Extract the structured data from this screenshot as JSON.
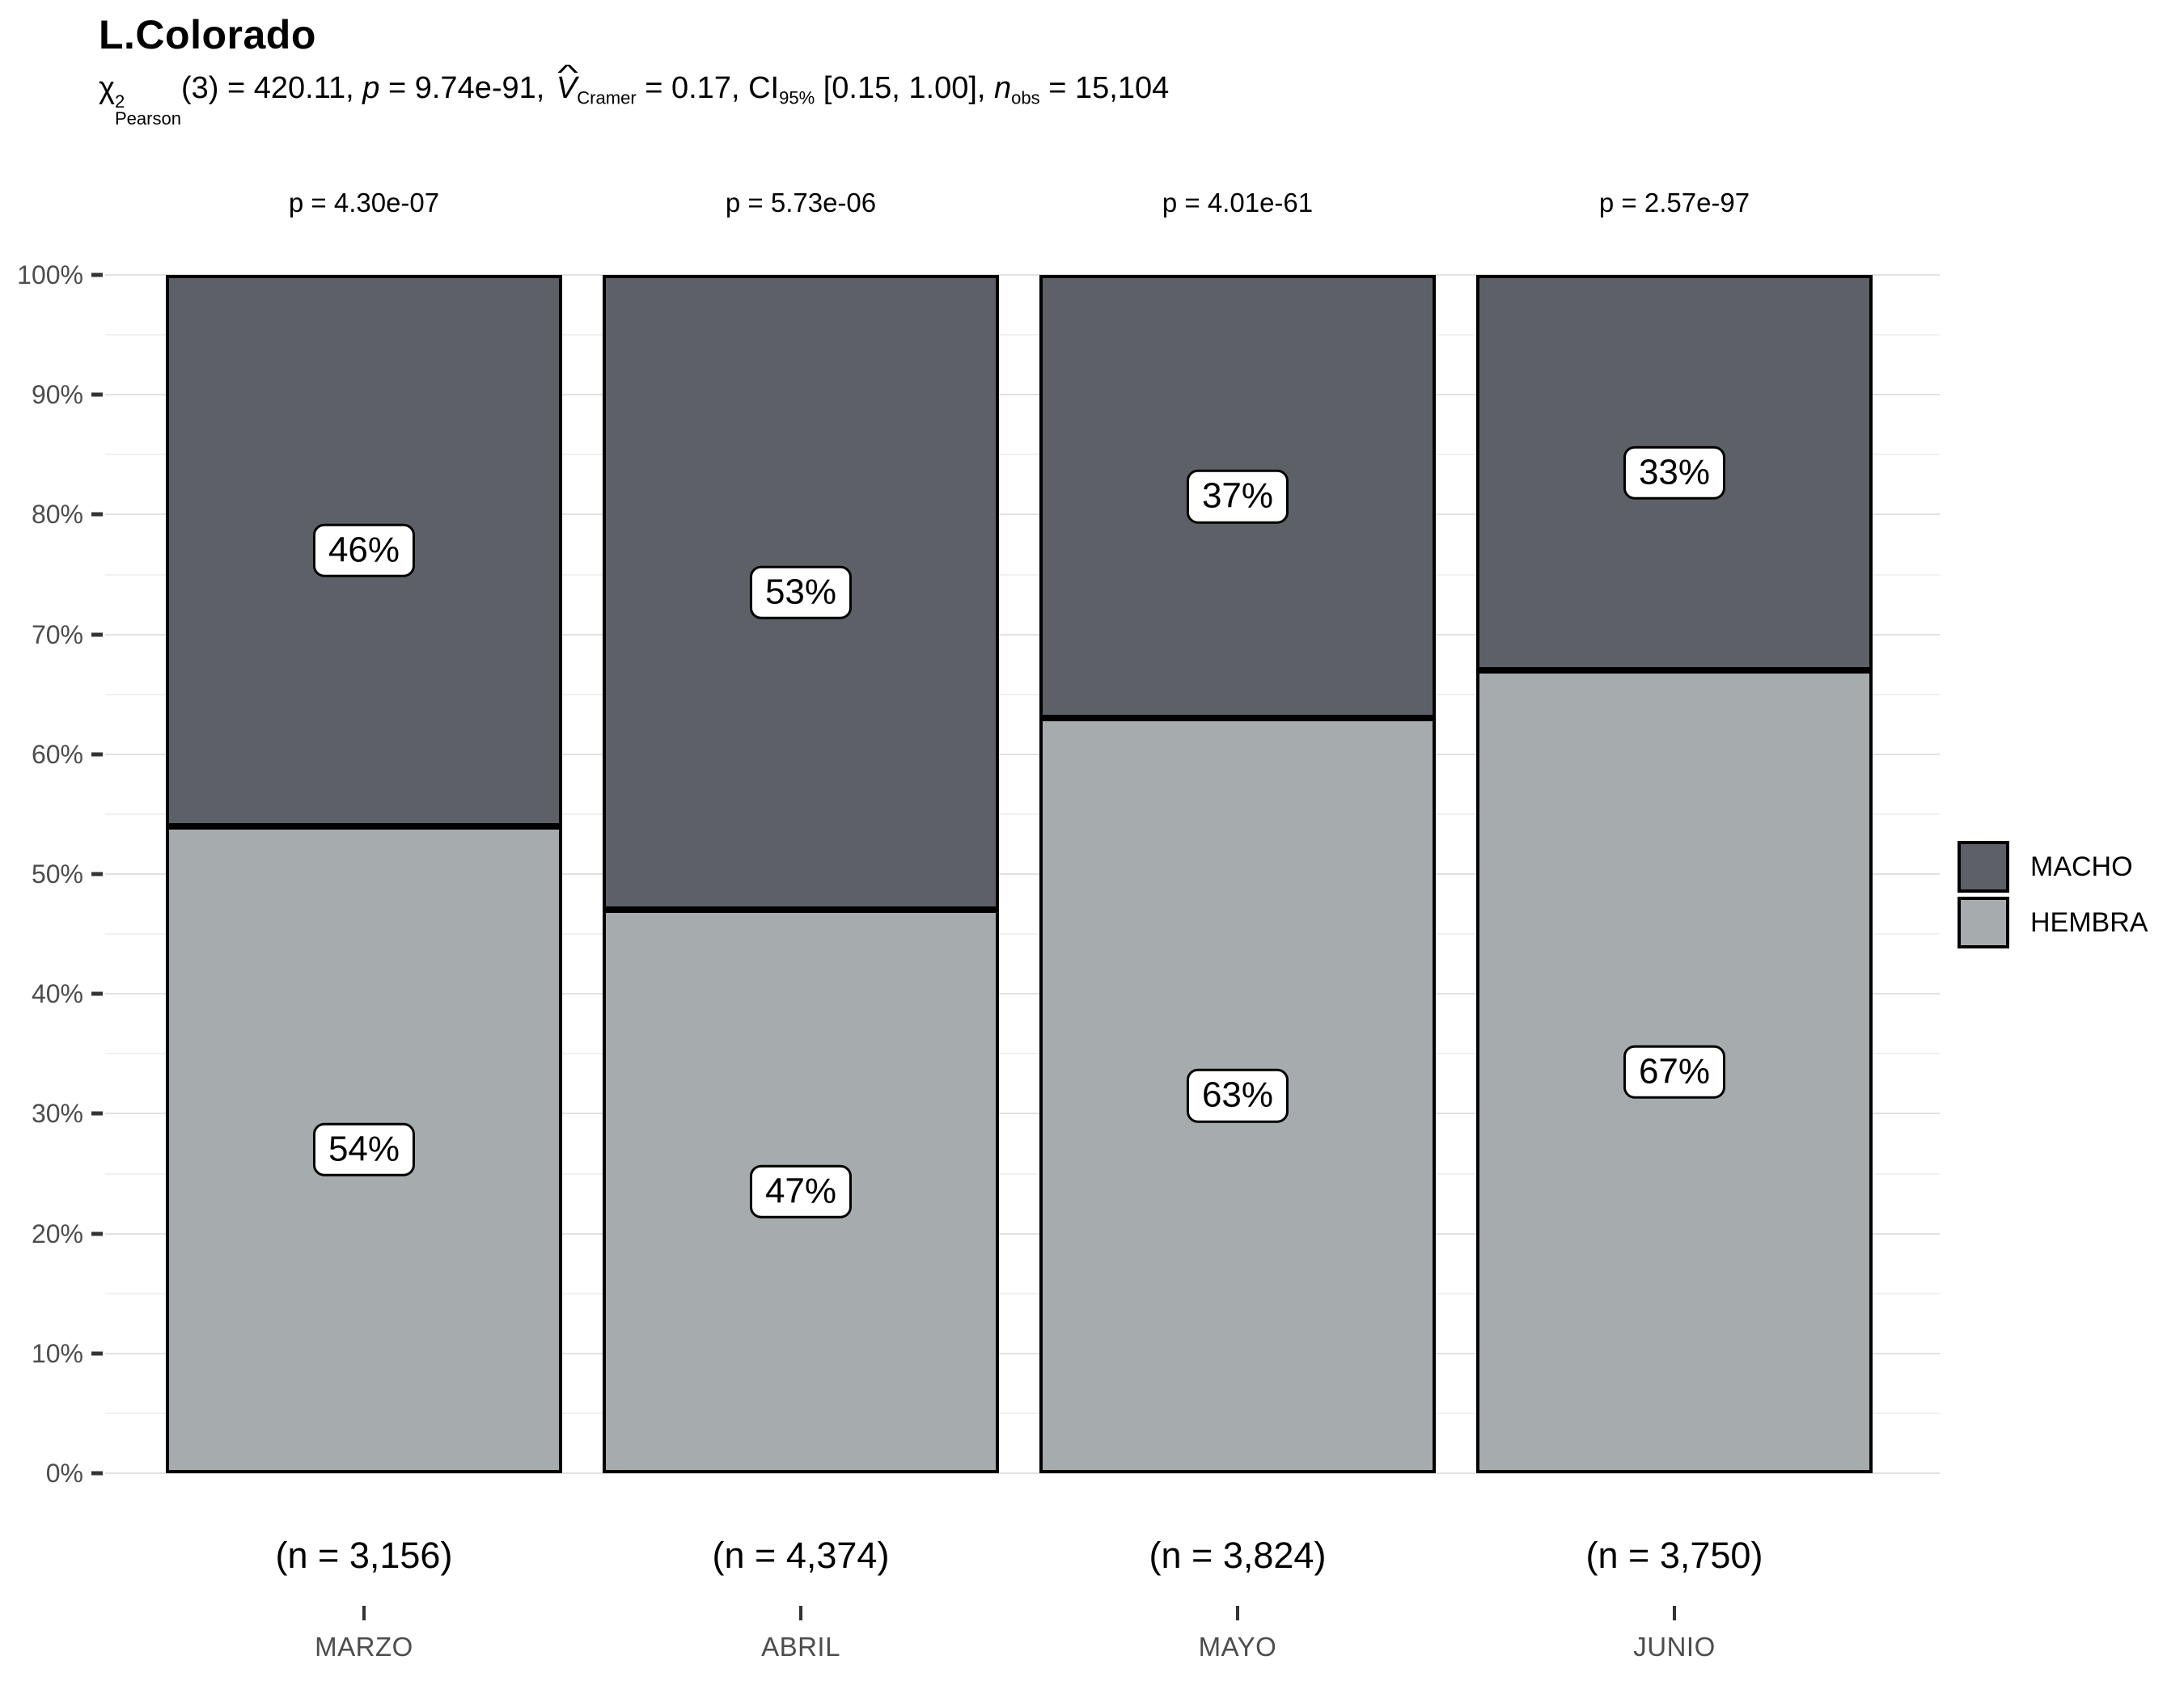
{
  "title": "L.Colorado",
  "subtitle": {
    "chi": "χ",
    "chi_sup": "2",
    "chi_sub": "Pearson",
    "df": "(3)",
    "stat_val": " = 420.11, ",
    "p_sym": "p",
    "p_val": " = 9.74e-91, ",
    "v_hat": "^",
    "v_sym": "V",
    "v_sub": "Cramer",
    "v_val": " = 0.17, ",
    "ci_label": "CI",
    "ci_sub": "95%",
    "ci_val": " [0.15, 1.00], ",
    "n_sym": "n",
    "n_sub": "obs",
    "n_val": " = 15,104"
  },
  "colors": {
    "macho": "#5d6167",
    "hembra": "#a6acae",
    "label_box_bg": "#ffffff",
    "gridline_major": "#e2e2e2",
    "gridline_minor": "#f1f1f1",
    "axis_text": "#4d4d4d"
  },
  "y_axis": {
    "tick_labels": [
      "0%",
      "10%",
      "20%",
      "30%",
      "40%",
      "50%",
      "60%",
      "70%",
      "80%",
      "90%",
      "100%"
    ]
  },
  "legend": {
    "items": [
      {
        "label": "MACHO",
        "color": "#5d6167"
      },
      {
        "label": "HEMBRA",
        "color": "#a6acae"
      }
    ]
  },
  "chart_data": {
    "type": "bar",
    "subtype": "100%-stacked",
    "title": "L.Colorado",
    "categories": [
      "MARZO",
      "ABRIL",
      "MAYO",
      "JUNIO"
    ],
    "series": [
      {
        "name": "MACHO",
        "color": "#5d6167",
        "values": [
          46,
          53,
          37,
          33
        ]
      },
      {
        "name": "HEMBRA",
        "color": "#a6acae",
        "values": [
          54,
          47,
          63,
          67
        ]
      }
    ],
    "ylim": [
      0,
      100
    ],
    "y_tick_step": 10,
    "grid": "major 10% + minor 5%",
    "legend_position": "right",
    "columns": [
      {
        "category": "MARZO",
        "p_sym": "p",
        "p_rest": " = 4.30e-07",
        "n_label": "(n = 3,156)",
        "macho_pct": 46,
        "hembra_pct": 54,
        "macho_label": "46%",
        "hembra_label": "54%"
      },
      {
        "category": "ABRIL",
        "p_sym": "p",
        "p_rest": " = 5.73e-06",
        "n_label": "(n = 4,374)",
        "macho_pct": 53,
        "hembra_pct": 47,
        "macho_label": "53%",
        "hembra_label": "47%"
      },
      {
        "category": "MAYO",
        "p_sym": "p",
        "p_rest": " = 4.01e-61",
        "n_label": "(n = 3,824)",
        "macho_pct": 37,
        "hembra_pct": 63,
        "macho_label": "37%",
        "hembra_label": "63%"
      },
      {
        "category": "JUNIO",
        "p_sym": "p",
        "p_rest": " = 2.57e-97",
        "n_label": "(n = 3,750)",
        "macho_pct": 33,
        "hembra_pct": 67,
        "macho_label": "33%",
        "hembra_label": "67%"
      }
    ]
  }
}
